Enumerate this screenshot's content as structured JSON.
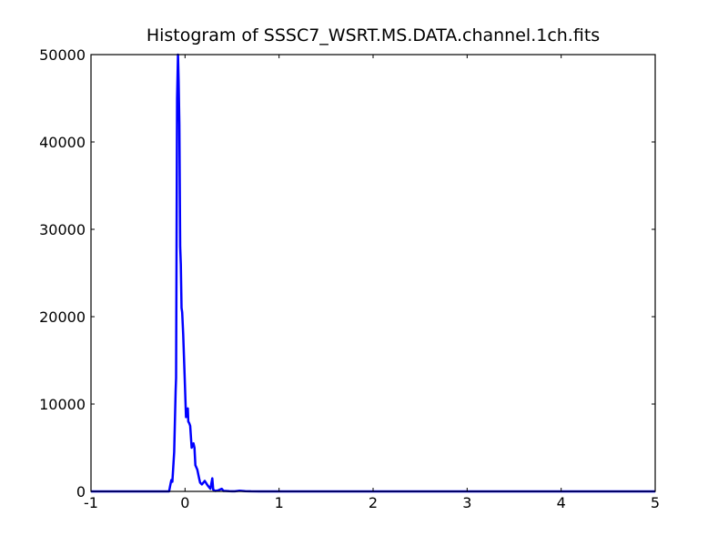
{
  "chart_data": {
    "type": "line",
    "title": "Histogram of SSSC7_WSRT.MS.DATA.channel.1ch.fits",
    "xlabel": "",
    "ylabel": "",
    "xlim": [
      -1,
      5
    ],
    "ylim": [
      0,
      50000
    ],
    "xticks": [
      "-1",
      "0",
      "1",
      "2",
      "3",
      "4",
      "5"
    ],
    "yticks": [
      "0",
      "10000",
      "20000",
      "30000",
      "40000",
      "50000"
    ],
    "grid": false,
    "legend": "none",
    "line_color": "#0000ff",
    "series": [
      {
        "x": [
          -1.0,
          -0.17,
          -0.155,
          -0.145,
          -0.135,
          -0.115,
          -0.1,
          -0.095,
          -0.085,
          -0.075,
          -0.068,
          -0.06,
          -0.052,
          -0.045,
          -0.037,
          -0.03,
          -0.02,
          -0.005,
          0.01,
          0.03,
          0.035,
          0.045,
          0.055,
          0.07,
          0.09,
          0.1,
          0.11,
          0.13,
          0.15,
          0.16,
          0.18,
          0.21,
          0.24,
          0.27,
          0.29,
          0.3,
          0.32,
          0.35,
          0.39,
          0.41,
          0.43,
          0.47,
          0.53,
          0.58,
          0.64,
          0.7,
          0.8,
          1.0,
          2.0,
          3.0,
          4.0,
          5.0
        ],
        "y": [
          0,
          0,
          800,
          1300,
          1100,
          4500,
          11500,
          13000,
          45000,
          50000,
          47000,
          42000,
          28000,
          26000,
          21000,
          20500,
          18000,
          13500,
          8500,
          9500,
          8000,
          7800,
          7500,
          5000,
          5500,
          5000,
          3000,
          2500,
          1500,
          1000,
          800,
          1200,
          700,
          300,
          1500,
          200,
          50,
          100,
          300,
          50,
          50,
          20,
          10,
          80,
          30,
          10,
          5,
          0,
          0,
          0,
          0,
          0
        ]
      }
    ]
  }
}
